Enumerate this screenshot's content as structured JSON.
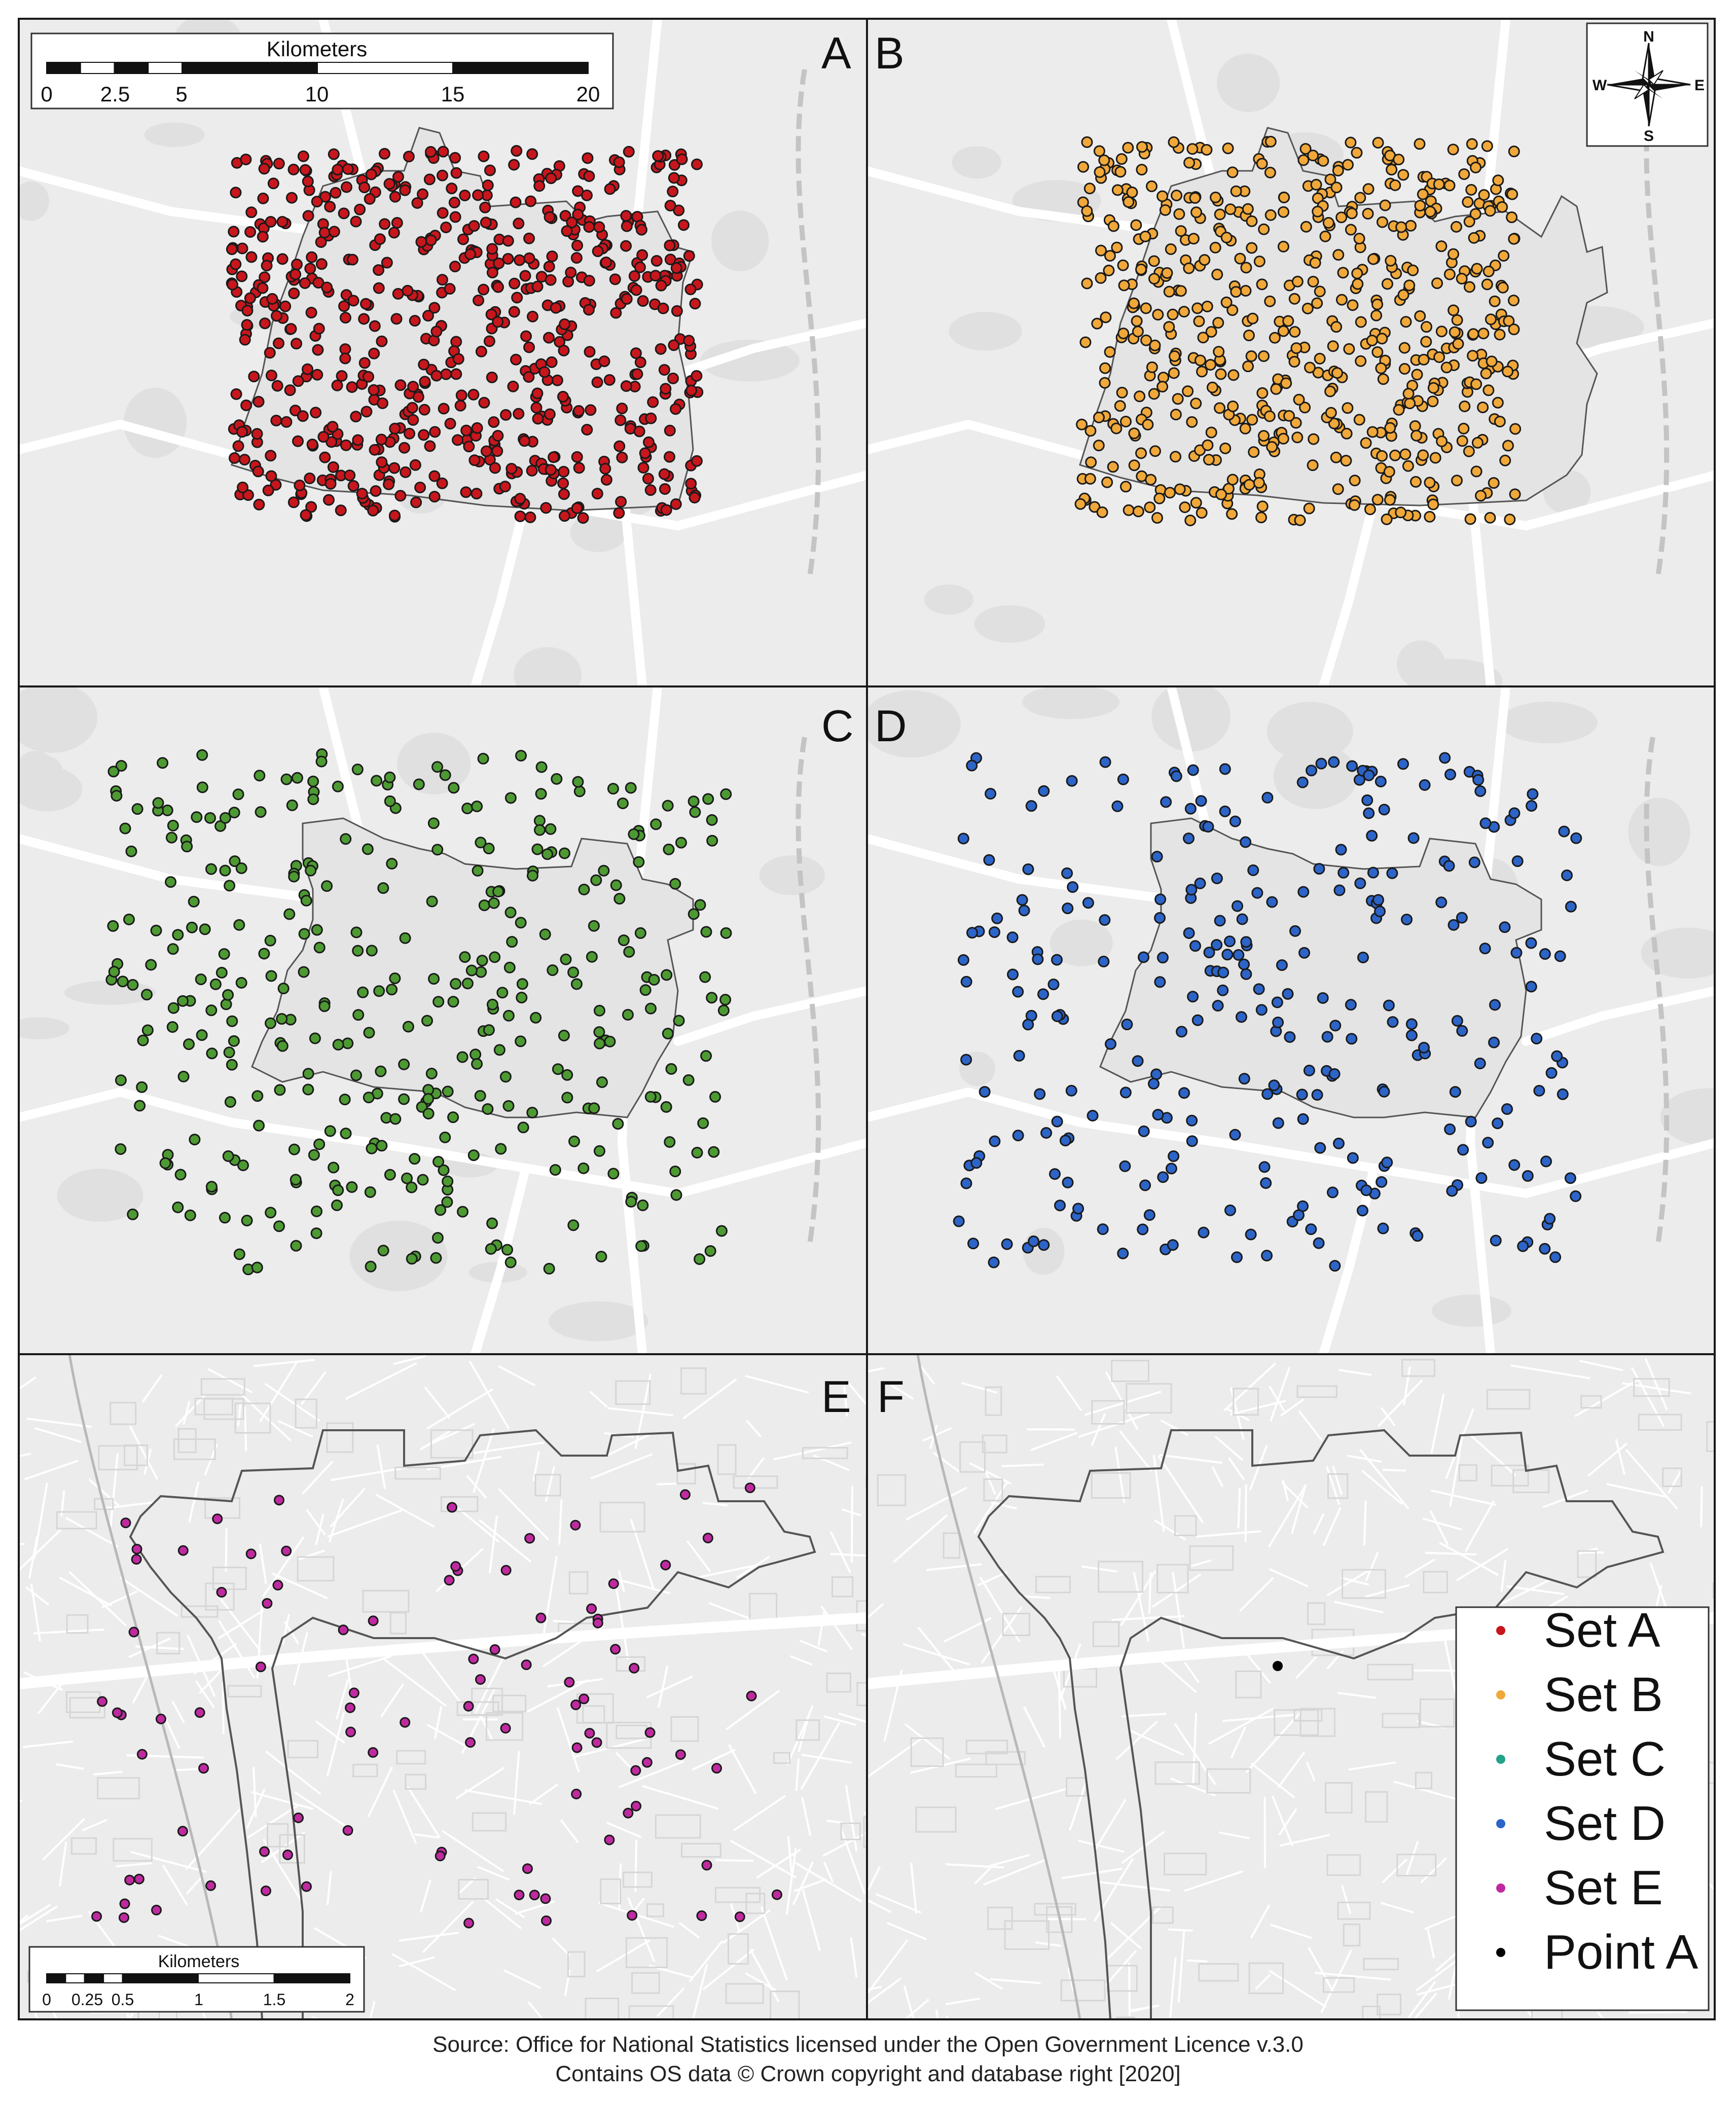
{
  "panels": [
    {
      "letter": "A",
      "map_type": "regional",
      "boundary": "district-a",
      "dot_color": "#c8161d",
      "dot_count": 640
    },
    {
      "letter": "B",
      "map_type": "regional",
      "boundary": "district-b",
      "dot_color": "#f0a83a",
      "dot_count": 600
    },
    {
      "letter": "C",
      "map_type": "regional",
      "boundary": "district-cd",
      "dot_color": "#4d9a33",
      "dot_count": 380
    },
    {
      "letter": "D",
      "map_type": "regional",
      "boundary": "district-cd",
      "dot_color": "#2c64c8",
      "dot_count": 300
    },
    {
      "letter": "E",
      "map_type": "local",
      "boundary": "neighbourhood",
      "dot_color": "#c02aa0",
      "dot_count": 95
    },
    {
      "letter": "F",
      "map_type": "local",
      "boundary": "neighbourhood",
      "dot_color": "#000000",
      "dot_count": 1
    }
  ],
  "scale_bar_large": {
    "title": "Kilometers",
    "ticks": [
      "0",
      "2.5",
      "5",
      "10",
      "15",
      "20"
    ]
  },
  "scale_bar_small": {
    "title": "Kilometers",
    "ticks": [
      "0",
      "0.25",
      "0.5",
      "1",
      "1.5",
      "2"
    ]
  },
  "north_arrow": {
    "n": "N",
    "s": "S",
    "e": "E",
    "w": "W"
  },
  "legend": {
    "items": [
      {
        "label": "Set A",
        "color": "#c8161d"
      },
      {
        "label": "Set B",
        "color": "#f0a83a"
      },
      {
        "label": "Set C",
        "color": "#22a38a"
      },
      {
        "label": "Set D",
        "color": "#2c64c8"
      },
      {
        "label": "Set E",
        "color": "#c02aa0"
      },
      {
        "label": "Point A",
        "color": "#000000"
      }
    ]
  },
  "source_line_1": "Source: Office for National Statistics licensed under the Open Government Licence v.3.0",
  "source_line_2": "Contains OS data © Crown copyright and database right [2020]"
}
